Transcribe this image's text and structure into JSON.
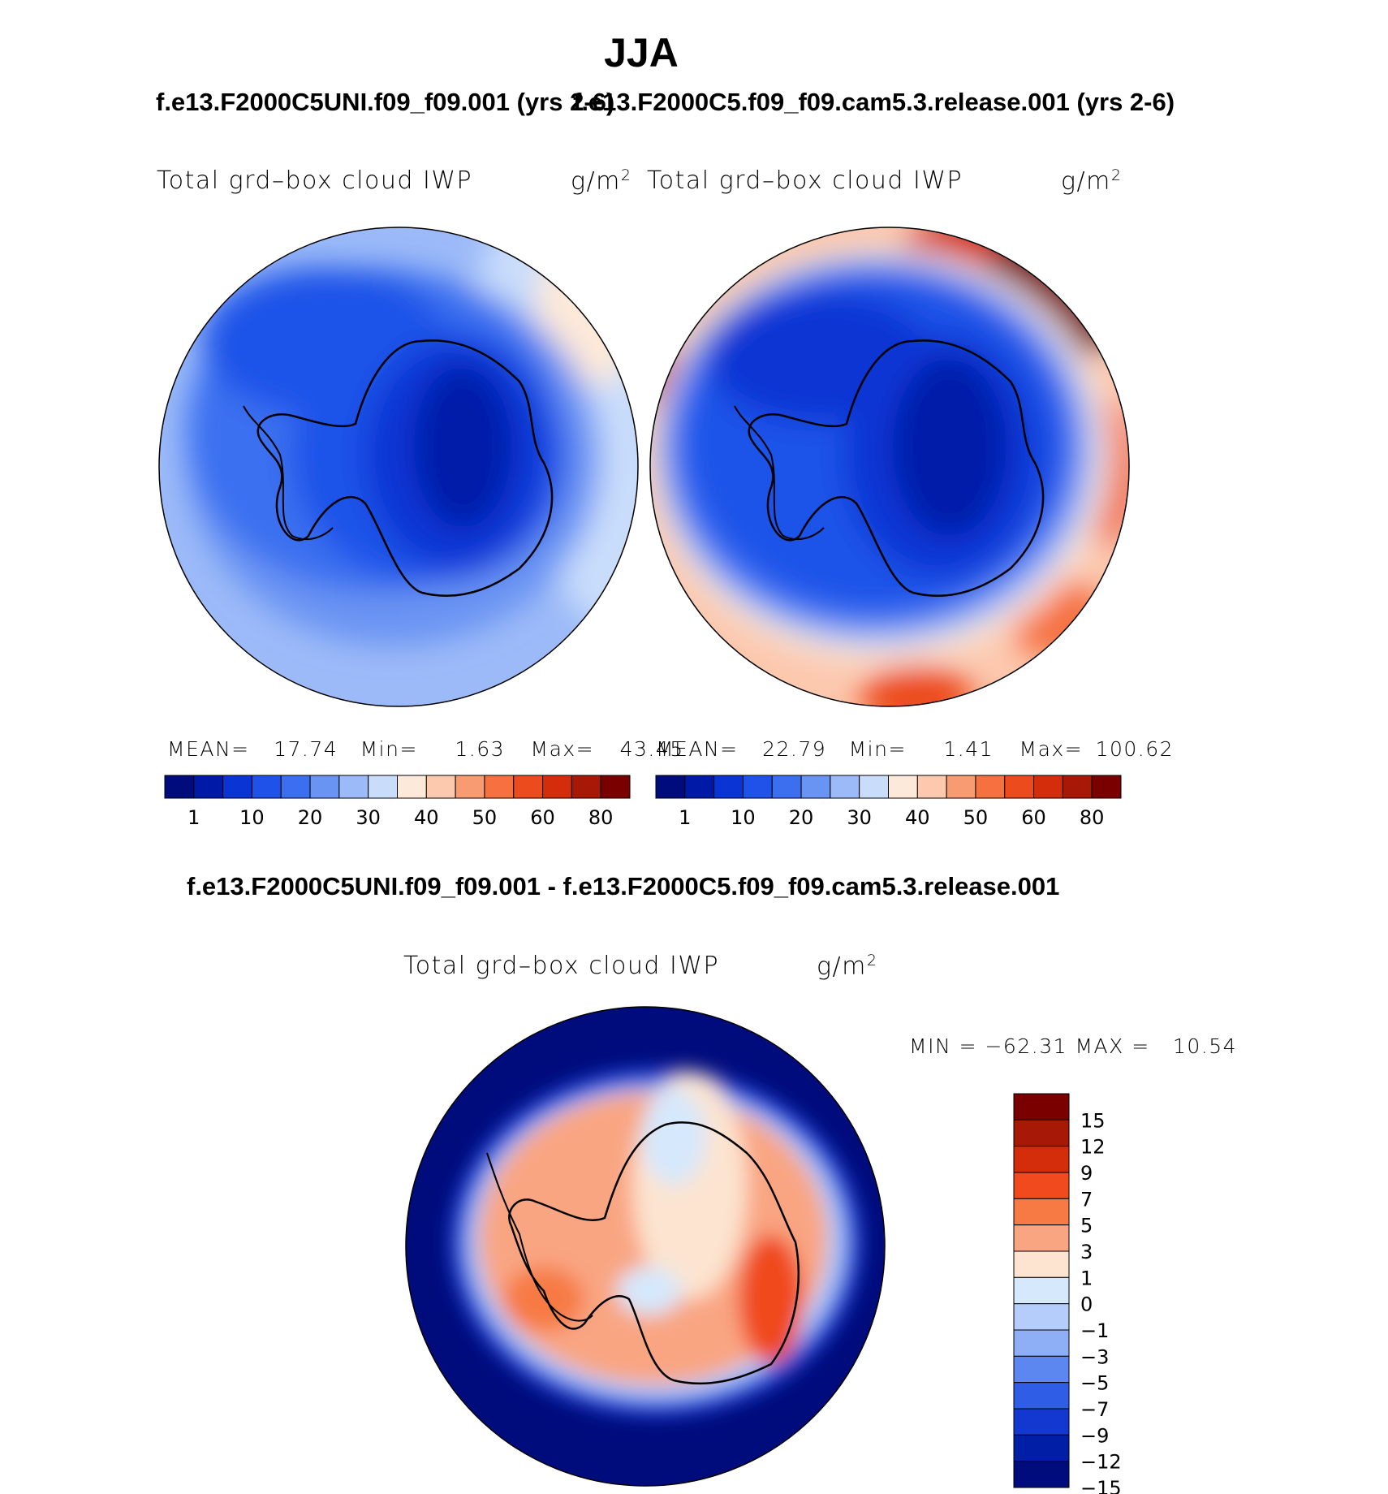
{
  "season": "JJA",
  "panels": {
    "left": {
      "case_title": "f.e13.F2000C5UNI.f09_f09.001 (yrs 2-6)",
      "field_label": "Total grd–box cloud IWP",
      "units_base": "g/m",
      "units_exp": "2",
      "stats": {
        "mean_label": "MEAN=",
        "mean": "17.74",
        "min_label": "Min=",
        "min": "1.63",
        "max_label": "Max=",
        "max": "43.45"
      }
    },
    "right": {
      "case_title": "f.e13.F2000C5.f09_f09.cam5.3.release.001 (yrs 2-6)",
      "field_label": "Total grd–box cloud IWP",
      "units_base": "g/m",
      "units_exp": "2",
      "stats": {
        "mean_label": "MEAN=",
        "mean": "22.79",
        "min_label": "Min=",
        "min": "1.41",
        "max_label": "Max=",
        "max": "100.62"
      }
    },
    "diff": {
      "title": "f.e13.F2000C5UNI.f09_f09.001 - f.e13.F2000C5.f09_f09.cam5.3.release.001",
      "field_label": "Total grd–box cloud IWP",
      "units_base": "g/m",
      "units_exp": "2",
      "minmax_text": "MIN = −62.31 MAX =   10.54"
    }
  },
  "chart_data": [
    {
      "type": "heatmap",
      "title": "f.e13.F2000C5UNI.f09_f09.001 (yrs 2-6)",
      "variable": "Total grd-box cloud IWP",
      "units": "g/m^2",
      "projection": "south polar stereographic",
      "mean": 17.74,
      "min": 1.63,
      "max": 43.45,
      "colorbar_ticks": [
        "1",
        "10",
        "20",
        "30",
        "40",
        "50",
        "60",
        "80"
      ],
      "colors": [
        "#000c7c",
        "#001aa8",
        "#0a35d4",
        "#1f52e8",
        "#3b6ff0",
        "#6a94f3",
        "#9cbaf8",
        "#c9ddfb",
        "#fde9d9",
        "#fcc8ae",
        "#f89a72",
        "#f5713f",
        "#ec4b1e",
        "#d42d0c",
        "#a81806",
        "#7a0000"
      ]
    },
    {
      "type": "heatmap",
      "title": "f.e13.F2000C5.f09_f09.cam5.3.release.001 (yrs 2-6)",
      "variable": "Total grd-box cloud IWP",
      "units": "g/m^2",
      "projection": "south polar stereographic",
      "mean": 22.79,
      "min": 1.41,
      "max": 100.62,
      "colorbar_ticks": [
        "1",
        "10",
        "20",
        "30",
        "40",
        "50",
        "60",
        "80"
      ],
      "colors": [
        "#000c7c",
        "#001aa8",
        "#0a35d4",
        "#1f52e8",
        "#3b6ff0",
        "#6a94f3",
        "#9cbaf8",
        "#c9ddfb",
        "#fde9d9",
        "#fcc8ae",
        "#f89a72",
        "#f5713f",
        "#ec4b1e",
        "#d42d0c",
        "#a81806",
        "#7a0000"
      ]
    },
    {
      "type": "heatmap",
      "title": "f.e13.F2000C5UNI.f09_f09.001 - f.e13.F2000C5.f09_f09.cam5.3.release.001",
      "variable": "Total grd-box cloud IWP",
      "units": "g/m^2",
      "projection": "south polar stereographic",
      "min": -62.31,
      "max": 10.54,
      "colorbar_ticks": [
        "15",
        "12",
        "9",
        "7",
        "5",
        "3",
        "1",
        "0",
        "−1",
        "−3",
        "−5",
        "−7",
        "−9",
        "−12",
        "−15"
      ],
      "colors": [
        "#7a0000",
        "#a81806",
        "#d42d0c",
        "#f04a1e",
        "#f77a45",
        "#f9a582",
        "#fce4d0",
        "#d6e8fc",
        "#b4cdfa",
        "#8eaef6",
        "#5d87f0",
        "#2f5de6",
        "#1238cf",
        "#001fa6",
        "#000c7c"
      ]
    }
  ]
}
